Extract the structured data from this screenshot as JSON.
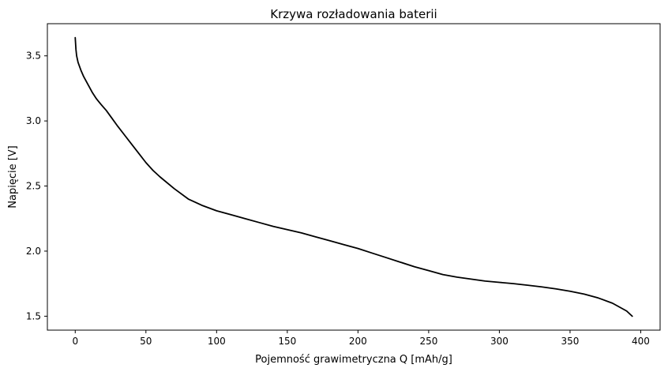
{
  "chart_data": {
    "type": "line",
    "title": "Krzywa rozładowania baterii",
    "xlabel": "Pojemność grawimetryczna Q [mAh/g]",
    "ylabel": "Napięcie [V]",
    "xlim": [
      -19.7,
      413.7
    ],
    "ylim": [
      1.393,
      3.747
    ],
    "xticks": [
      0,
      50,
      100,
      150,
      200,
      250,
      300,
      350,
      400
    ],
    "yticks": [
      1.5,
      2.0,
      2.5,
      3.0,
      3.5
    ],
    "xtick_labels": [
      "0",
      "50",
      "100",
      "150",
      "200",
      "250",
      "300",
      "350",
      "400"
    ],
    "ytick_labels": [
      "1.5",
      "2.0",
      "2.5",
      "3.0",
      "3.5"
    ],
    "grid": false,
    "legend": "none",
    "line_color": "#000000",
    "series": [
      {
        "x": [
          0,
          0.5,
          1,
          2,
          4,
          6,
          9,
          12,
          15,
          18,
          22,
          26,
          30,
          35,
          40,
          45,
          50,
          55,
          60,
          70,
          80,
          90,
          100,
          110,
          120,
          130,
          140,
          150,
          160,
          170,
          180,
          190,
          200,
          210,
          220,
          230,
          240,
          250,
          260,
          270,
          280,
          290,
          300,
          310,
          320,
          330,
          340,
          350,
          360,
          370,
          380,
          390,
          394
        ],
        "y": [
          3.64,
          3.55,
          3.5,
          3.45,
          3.39,
          3.34,
          3.28,
          3.22,
          3.17,
          3.13,
          3.08,
          3.02,
          2.96,
          2.89,
          2.82,
          2.75,
          2.68,
          2.62,
          2.57,
          2.48,
          2.4,
          2.35,
          2.31,
          2.28,
          2.25,
          2.22,
          2.19,
          2.165,
          2.14,
          2.11,
          2.08,
          2.05,
          2.02,
          1.985,
          1.95,
          1.915,
          1.88,
          1.85,
          1.82,
          1.8,
          1.785,
          1.77,
          1.76,
          1.75,
          1.738,
          1.725,
          1.71,
          1.692,
          1.67,
          1.64,
          1.6,
          1.54,
          1.5
        ]
      }
    ]
  }
}
